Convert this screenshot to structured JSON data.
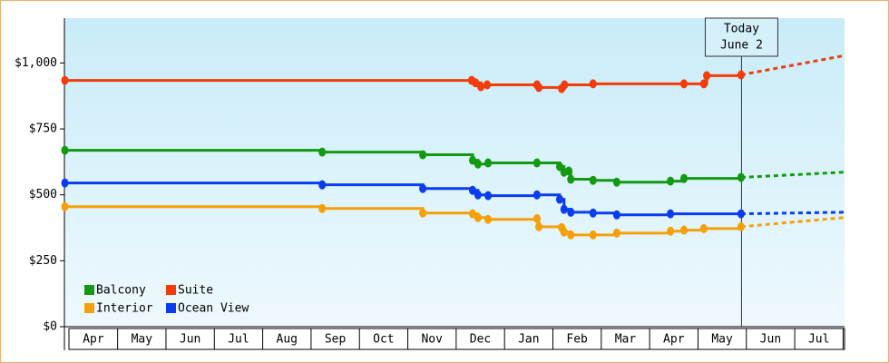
{
  "chart_data": {
    "type": "step-line",
    "xlim": [
      -0.1,
      16.03
    ],
    "xticks": [
      {
        "value": 0.5,
        "label": "Apr"
      },
      {
        "value": 1.5,
        "label": "May"
      },
      {
        "value": 2.5,
        "label": "Jun"
      },
      {
        "value": 3.5,
        "label": "Jul"
      },
      {
        "value": 4.5,
        "label": "Aug"
      },
      {
        "value": 5.5,
        "label": "Sep"
      },
      {
        "value": 6.5,
        "label": "Oct"
      },
      {
        "value": 7.5,
        "label": "Nov"
      },
      {
        "value": 8.5,
        "label": "Dec"
      },
      {
        "value": 9.5,
        "label": "Jan"
      },
      {
        "value": 10.5,
        "label": "Feb"
      },
      {
        "value": 11.5,
        "label": "Mar"
      },
      {
        "value": 12.5,
        "label": "Apr"
      },
      {
        "value": 13.5,
        "label": "May"
      },
      {
        "value": 14.5,
        "label": "Jun"
      },
      {
        "value": 15.5,
        "label": "Jul"
      }
    ],
    "ylim": [
      0,
      1170
    ],
    "yticks": [
      {
        "value": 0,
        "label": "$0"
      },
      {
        "value": 250,
        "label": "$250"
      },
      {
        "value": 500,
        "label": "$500"
      },
      {
        "value": 750,
        "label": "$750"
      },
      {
        "value": 1000,
        "label": "$1,000"
      }
    ],
    "annotation": {
      "x": 13.9,
      "lines": [
        "Today",
        "June 2"
      ]
    },
    "forecast_x": 16.03,
    "series": [
      {
        "name": "Balcony",
        "color": "#129a12",
        "x": [
          -0.09,
          5.23,
          7.31,
          8.34,
          8.45,
          8.66,
          9.67,
          10.14,
          10.23,
          10.33,
          10.37,
          10.83,
          11.32,
          12.43,
          12.71,
          13.89
        ],
        "values": [
          669,
          662,
          652,
          631,
          617,
          621,
          621,
          607,
          586,
          590,
          559,
          555,
          548,
          552,
          562,
          566
        ],
        "forecast": 586
      },
      {
        "name": "Suite",
        "color": "#f23c0a",
        "x": [
          -0.09,
          8.32,
          8.4,
          8.51,
          8.64,
          9.67,
          9.71,
          10.18,
          10.24,
          10.83,
          12.71,
          13.12,
          13.18,
          13.89
        ],
        "values": [
          934,
          934,
          925,
          910,
          917,
          917,
          907,
          903,
          917,
          921,
          921,
          921,
          952,
          955
        ],
        "forecast": 1028
      },
      {
        "name": "Interior",
        "color": "#f5a00a",
        "x": [
          -0.09,
          5.23,
          7.31,
          8.34,
          8.45,
          8.66,
          9.67,
          9.71,
          10.18,
          10.23,
          10.37,
          10.83,
          11.32,
          12.43,
          12.71,
          13.12,
          13.89
        ],
        "values": [
          455,
          448,
          431,
          428,
          414,
          407,
          410,
          379,
          376,
          359,
          348,
          348,
          355,
          362,
          366,
          372,
          379
        ],
        "forecast": 414
      },
      {
        "name": "Ocean View",
        "color": "#0a3cf0",
        "x": [
          -0.09,
          5.23,
          7.31,
          8.34,
          8.45,
          8.66,
          9.67,
          10.14,
          10.23,
          10.37,
          10.83,
          11.32,
          12.43,
          13.89
        ],
        "values": [
          545,
          538,
          524,
          517,
          500,
          497,
          500,
          483,
          445,
          434,
          431,
          424,
          428,
          428
        ],
        "forecast": 434
      }
    ]
  }
}
